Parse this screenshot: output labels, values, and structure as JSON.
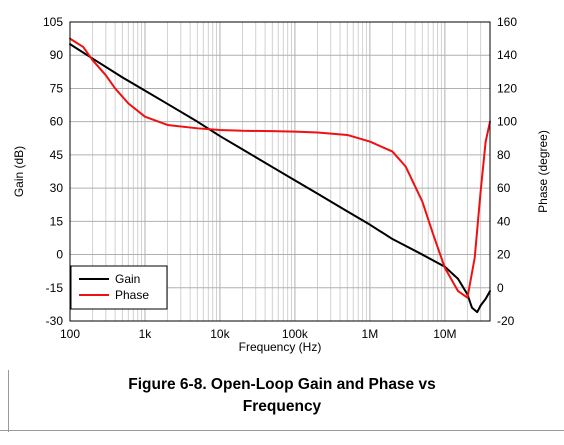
{
  "caption": {
    "line1": "Figure 6-8. Open-Loop Gain and Phase vs",
    "line2": "Frequency"
  },
  "chart_data": {
    "type": "line",
    "title": "Figure 6-8. Open-Loop Gain and Phase vs Frequency",
    "xlabel": "Frequency (Hz)",
    "ylabel": "Gain (dB)",
    "y2label": "Phase (degree)",
    "xscale": "log",
    "xlim": [
      100,
      40000000
    ],
    "ylim": [
      -30,
      105
    ],
    "y2lim": [
      -20,
      160
    ],
    "grid": true,
    "legend_position": "bottom-left",
    "x_ticks": [
      {
        "value": 100,
        "label": "100"
      },
      {
        "value": 1000,
        "label": "1k"
      },
      {
        "value": 10000,
        "label": "10k"
      },
      {
        "value": 100000,
        "label": "100k"
      },
      {
        "value": 1000000,
        "label": "1M"
      },
      {
        "value": 10000000,
        "label": "10M"
      }
    ],
    "y_ticks": [
      {
        "value": 105,
        "label": "105"
      },
      {
        "value": 90,
        "label": "90"
      },
      {
        "value": 75,
        "label": "75"
      },
      {
        "value": 60,
        "label": "60"
      },
      {
        "value": 45,
        "label": "45"
      },
      {
        "value": 30,
        "label": "30"
      },
      {
        "value": 15,
        "label": "15"
      },
      {
        "value": 0,
        "label": "0"
      },
      {
        "value": -15,
        "label": "-15"
      },
      {
        "value": -30,
        "label": "-30"
      }
    ],
    "y2_ticks": [
      {
        "value": 160,
        "label": "160"
      },
      {
        "value": 140,
        "label": "140"
      },
      {
        "value": 120,
        "label": "120"
      },
      {
        "value": 100,
        "label": "100"
      },
      {
        "value": 80,
        "label": "80"
      },
      {
        "value": 60,
        "label": "60"
      },
      {
        "value": 40,
        "label": "40"
      },
      {
        "value": 20,
        "label": "20"
      },
      {
        "value": 0,
        "label": "0"
      },
      {
        "value": -20,
        "label": "-20"
      }
    ],
    "series": [
      {
        "name": "Gain",
        "axis": "left",
        "color": "#000000",
        "x": [
          100,
          200,
          500,
          1000,
          2000,
          5000,
          10000,
          20000,
          50000,
          100000,
          200000,
          500000,
          1000000,
          2000000,
          5000000,
          10000000,
          15000000,
          20000000,
          23000000,
          27000000,
          30000000,
          35000000,
          40000000
        ],
        "y": [
          95,
          88.5,
          80,
          74,
          68,
          60,
          53.5,
          47.5,
          39.5,
          33.5,
          27.5,
          19.5,
          13.5,
          7,
          0,
          -5.5,
          -11,
          -18,
          -24,
          -26,
          -23,
          -20,
          -16.5
        ]
      },
      {
        "name": "Phase",
        "axis": "right",
        "color": "#ee1111",
        "x": [
          100,
          150,
          200,
          300,
          400,
          600,
          1000,
          2000,
          5000,
          10000,
          20000,
          50000,
          100000,
          200000,
          500000,
          1000000,
          2000000,
          3000000,
          5000000,
          7000000,
          10000000,
          15000000,
          20000000,
          25000000,
          30000000,
          35000000,
          40000000
        ],
        "y": [
          150,
          145,
          137,
          128,
          120,
          111,
          103,
          98,
          96,
          95,
          94.5,
          94.3,
          94,
          93.5,
          92,
          88,
          82,
          73,
          52,
          32,
          12,
          -2,
          -6,
          18,
          58,
          88,
          100
        ]
      }
    ]
  }
}
